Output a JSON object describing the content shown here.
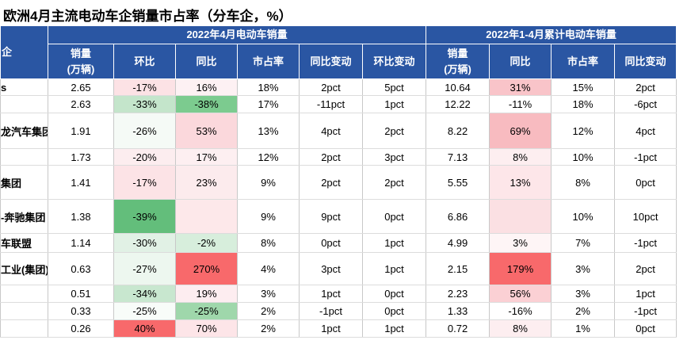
{
  "header": {
    "title": "欧洲4月主流电动车企销量市占率（分车企，%）"
  },
  "table": {
    "group_headers": [
      "企",
      "2022年4月电动车销量",
      "2022年1-4月累计电动车销量"
    ],
    "columns": [
      "销量\n(万辆)",
      "环比",
      "同比",
      "市占率",
      "同比变动",
      "环比变动",
      "销量\n(万辆)",
      "同比",
      "市占率",
      "同比变动"
    ],
    "rows": [
      [
        "s",
        "2.65",
        "-17%",
        "16%",
        "18%",
        "2pct",
        "5pct",
        "10.64",
        "31%",
        "15%",
        "2pct"
      ],
      [
        null,
        "2.63",
        "-33%",
        "-38%",
        "17%",
        "-11pct",
        "1pct",
        "12.22",
        "-11%",
        "18%",
        "-6pct"
      ],
      [
        "龙汽车集团",
        "1.91",
        "-26%",
        "53%",
        "13%",
        "4pct",
        "2pct",
        "8.22",
        "69%",
        "12%",
        "4pct"
      ],
      [
        null,
        "1.73",
        "-20%",
        "17%",
        "12%",
        "2pct",
        "3pct",
        "7.13",
        "8%",
        "10%",
        "-1pct"
      ],
      [
        "集团",
        "1.41",
        "-17%",
        "23%",
        "9%",
        "2pct",
        "2pct",
        "5.55",
        "13%",
        "8%",
        "0pct"
      ],
      [
        "-奔驰集团",
        "1.38",
        "-39%",
        null,
        "9%",
        "9pct",
        "0pct",
        "6.86",
        null,
        "10%",
        "10pct"
      ],
      [
        "车联盟",
        "1.14",
        "-30%",
        "-2%",
        "8%",
        "0pct",
        "1pct",
        "4.99",
        "3%",
        "7%",
        "-1pct"
      ],
      [
        "工业(集团)",
        "0.63",
        "-27%",
        "270%",
        "4%",
        "3pct",
        "1pct",
        "2.15",
        "179%",
        "3%",
        "2pct"
      ],
      [
        null,
        "0.51",
        "-34%",
        "19%",
        "3%",
        "1pct",
        "0pct",
        "2.23",
        "56%",
        "3%",
        "1pct"
      ],
      [
        null,
        "0.33",
        "-25%",
        "-25%",
        "2%",
        "-1pct",
        "0pct",
        "1.33",
        "-16%",
        "2%",
        "-1pct"
      ],
      [
        null,
        "0.26",
        "40%",
        "70%",
        "2%",
        "1pct",
        "1pct",
        "0.72",
        "8%",
        "1%",
        "0pct"
      ]
    ],
    "fills": [
      [
        "#fce2e5",
        "#fdf1f3",
        "#f9c4c9"
      ],
      [
        "#c4e5cb",
        "#7ccb8f",
        "#ffffff"
      ],
      [
        "#f5faf6",
        "#fbd8dc",
        "#f8bbc0"
      ],
      [
        "#fcedef",
        "#fdeff1",
        "#fdeef0"
      ],
      [
        "#fce3e6",
        "#fcebed",
        "#fde6e9"
      ],
      [
        "#63be7b",
        "#fde8ea",
        "#fbe0e3"
      ],
      [
        "#e1f1e5",
        "#d7eedc",
        "#fef5f6"
      ],
      [
        "#edf7ef",
        "#f8696b",
        "#f8696b"
      ],
      [
        "#c8e7cf",
        "#fdedf0",
        "#fbd0d4"
      ],
      [
        "#f8fcf9",
        "#9fd7ab",
        "#ffffff"
      ],
      [
        "#f8696b",
        "#fde5e8",
        "#fdeef0"
      ]
    ]
  }
}
